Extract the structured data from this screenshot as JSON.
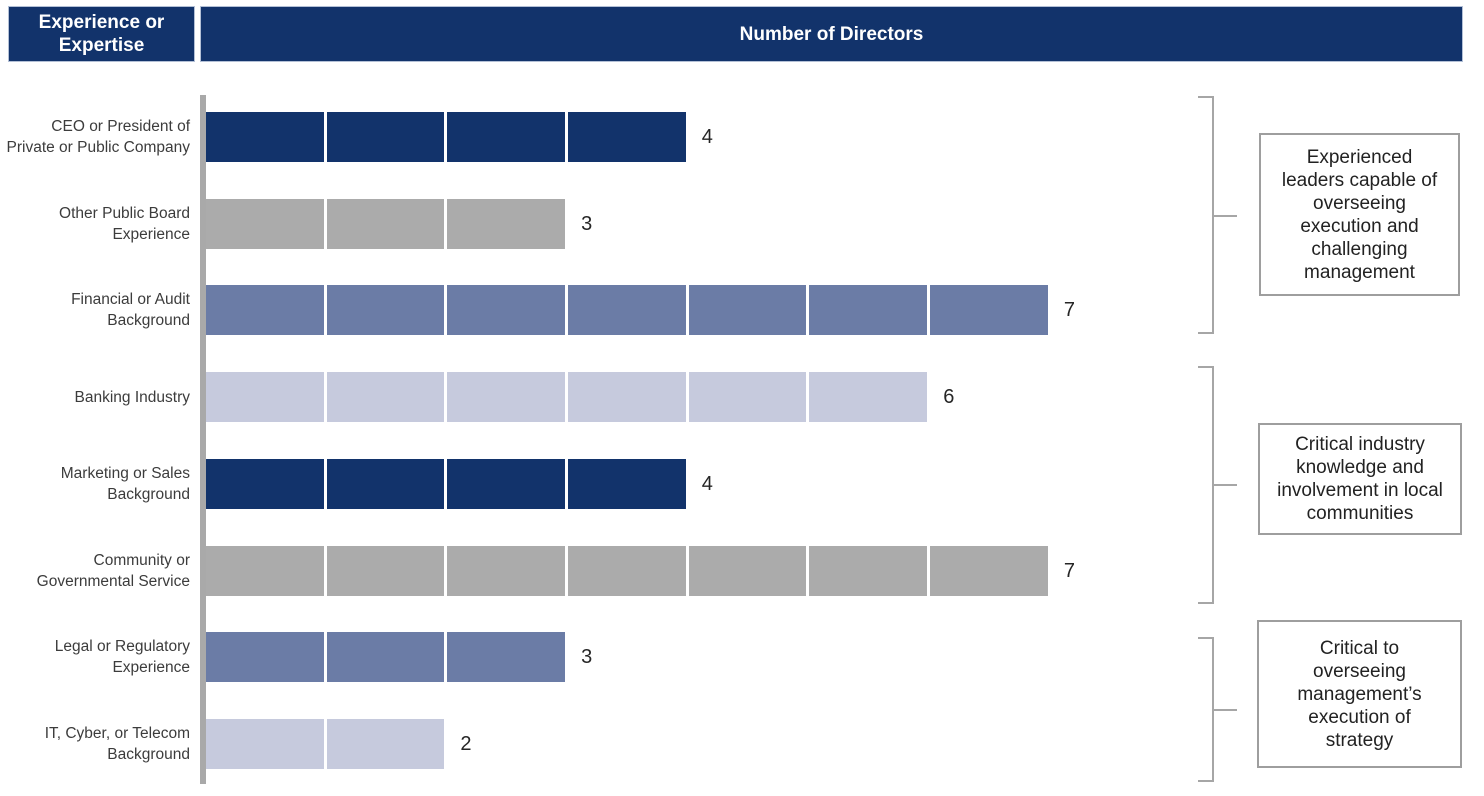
{
  "header": {
    "left_label": "Experience or\nExpertise",
    "right_label": "Number of Directors"
  },
  "colors": {
    "navy": "#12336b",
    "gray": "#ababab",
    "slate": "#6b7ca6",
    "lavender": "#c6cadd",
    "header_bg": "#12336b",
    "header_text": "#ffffff",
    "axis": "#a9a9a9",
    "bracket": "#a6a6a6",
    "box_border": "#9e9e9e",
    "category_text": "#3c3c3c",
    "value_text": "#262626"
  },
  "chart_data": {
    "type": "bar",
    "orientation": "horizontal",
    "title": "",
    "xlabel": "Number of Directors",
    "ylabel": "Experience or Expertise",
    "xlim": [
      0,
      7.5
    ],
    "grid": false,
    "segmented_by_unit": true,
    "legend": "none",
    "categories": [
      "CEO or President of\nPrivate or Public Company",
      "Other Public Board\nExperience",
      "Financial or Audit\nBackground",
      "Banking Industry",
      "Marketing or Sales\nBackground",
      "Community or\nGovernmental Service",
      "Legal or Regulatory\nExperience",
      "IT, Cyber, or Telecom\nBackground"
    ],
    "values": [
      4,
      3,
      7,
      6,
      4,
      7,
      3,
      2
    ],
    "bar_colors": [
      "navy",
      "gray",
      "slate",
      "lavender",
      "navy",
      "gray",
      "slate",
      "lavender"
    ]
  },
  "annotations": [
    {
      "text": "Experienced\nleaders capable of\noverseeing\nexecution and\nchallenging\nmanagement",
      "covers_rows": [
        1,
        3
      ]
    },
    {
      "text": "Critical industry\nknowledge and\ninvolvement in local\ncommunities",
      "covers_rows": [
        4,
        6
      ]
    },
    {
      "text": "Critical to\noverseeing\nmanagement’s\nexecution of\nstrategy",
      "covers_rows": [
        7,
        8
      ]
    }
  ]
}
